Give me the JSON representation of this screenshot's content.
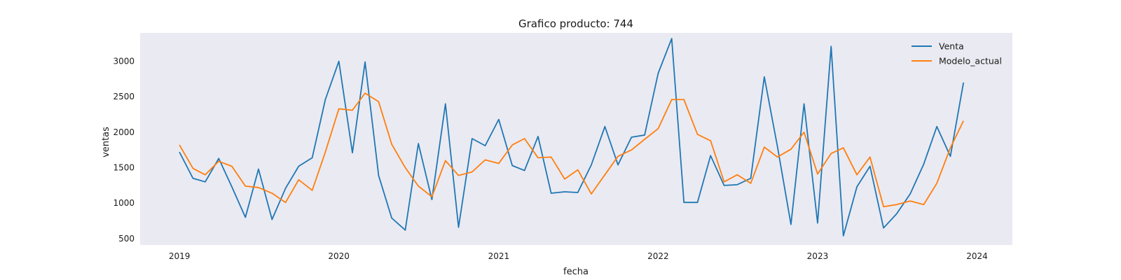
{
  "chart_data": {
    "type": "line",
    "title": "Grafico producto: 744",
    "xlabel": "fecha",
    "ylabel": "ventas",
    "xlim": [
      "2018-10-03",
      "2024-03-22"
    ],
    "ylim": [
      410,
      3400
    ],
    "x_ticks": [
      {
        "date": "2019-01-01",
        "label": "2019"
      },
      {
        "date": "2020-01-01",
        "label": "2020"
      },
      {
        "date": "2021-01-01",
        "label": "2021"
      },
      {
        "date": "2022-01-01",
        "label": "2022"
      },
      {
        "date": "2023-01-01",
        "label": "2023"
      },
      {
        "date": "2024-01-01",
        "label": "2024"
      }
    ],
    "y_ticks": [
      500,
      1000,
      1500,
      2000,
      2500,
      3000
    ],
    "grid": false,
    "legend": "top-right",
    "x": [
      "2019-01",
      "2019-02",
      "2019-03",
      "2019-04",
      "2019-05",
      "2019-06",
      "2019-07",
      "2019-08",
      "2019-09",
      "2019-10",
      "2019-11",
      "2019-12",
      "2020-01",
      "2020-02",
      "2020-03",
      "2020-04",
      "2020-05",
      "2020-06",
      "2020-07",
      "2020-08",
      "2020-09",
      "2020-10",
      "2020-11",
      "2020-12",
      "2021-01",
      "2021-02",
      "2021-03",
      "2021-04",
      "2021-05",
      "2021-06",
      "2021-07",
      "2021-08",
      "2021-09",
      "2021-10",
      "2021-11",
      "2021-12",
      "2022-01",
      "2022-02",
      "2022-03",
      "2022-04",
      "2022-05",
      "2022-06",
      "2022-07",
      "2022-08",
      "2022-09",
      "2022-10",
      "2022-11",
      "2022-12",
      "2023-01",
      "2023-02",
      "2023-03",
      "2023-04",
      "2023-05",
      "2023-06",
      "2023-07",
      "2023-08",
      "2023-09",
      "2023-10",
      "2023-11",
      "2023-12"
    ],
    "series": [
      {
        "name": "Venta",
        "color": "#1f77b4",
        "values": [
          1720,
          1350,
          1300,
          1630,
          1230,
          800,
          1480,
          770,
          1210,
          1520,
          1640,
          2460,
          3000,
          1710,
          2990,
          1390,
          790,
          620,
          1840,
          1050,
          2400,
          660,
          1910,
          1810,
          2180,
          1530,
          1460,
          1940,
          1140,
          1160,
          1150,
          1540,
          2080,
          1540,
          1930,
          1960,
          2830,
          3320,
          1010,
          1010,
          1670,
          1250,
          1260,
          1350,
          2780,
          1800,
          700,
          2400,
          720,
          3210,
          540,
          1230,
          1520,
          650,
          850,
          1130,
          1550,
          2080,
          1660,
          2700
        ]
      },
      {
        "name": "Modelo_actual",
        "color": "#ff7f0e",
        "values": [
          1820,
          1490,
          1400,
          1590,
          1520,
          1240,
          1220,
          1140,
          1010,
          1330,
          1180,
          1720,
          2330,
          2310,
          2550,
          2430,
          1830,
          1500,
          1240,
          1090,
          1600,
          1390,
          1440,
          1610,
          1560,
          1820,
          1910,
          1640,
          1650,
          1340,
          1470,
          1130,
          1400,
          1660,
          1750,
          1900,
          2050,
          2460,
          2460,
          1970,
          1880,
          1300,
          1400,
          1280,
          1790,
          1650,
          1760,
          2000,
          1410,
          1700,
          1780,
          1400,
          1650,
          950,
          980,
          1030,
          980,
          1280,
          1780,
          2160
        ]
      }
    ]
  }
}
